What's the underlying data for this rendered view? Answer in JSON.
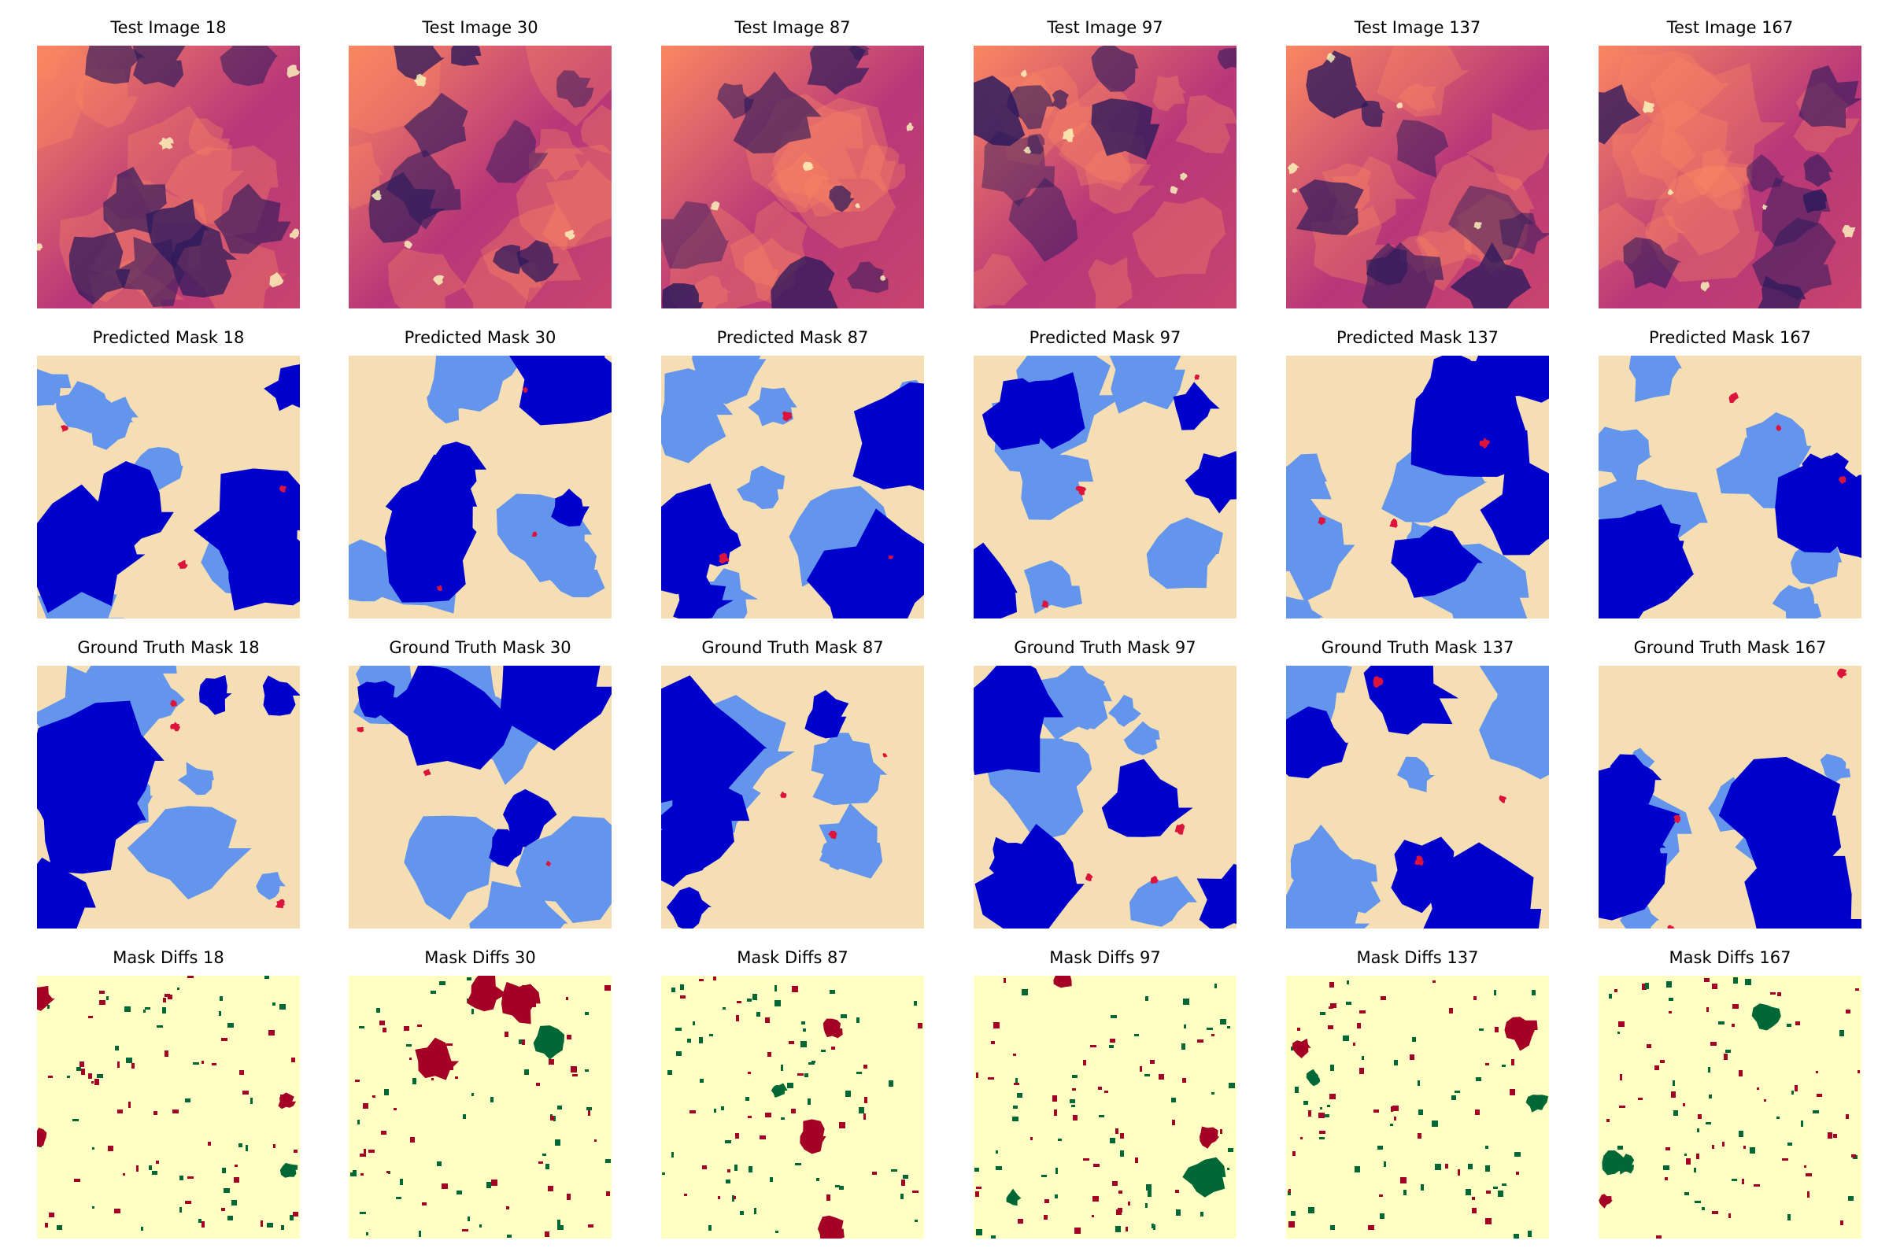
{
  "image_ids": [
    "18",
    "30",
    "87",
    "97",
    "137",
    "167"
  ],
  "rows": [
    {
      "kind": "image",
      "titles": [
        "Test Image 18",
        "Test Image 30",
        "Test Image 87",
        "Test Image 97",
        "Test Image 137",
        "Test Image 167"
      ]
    },
    {
      "kind": "pred",
      "titles": [
        "Predicted Mask 18",
        "Predicted Mask 30",
        "Predicted Mask 87",
        "Predicted Mask 97",
        "Predicted Mask 137",
        "Predicted Mask 167"
      ]
    },
    {
      "kind": "truth",
      "titles": [
        "Ground Truth Mask 18",
        "Ground Truth Mask 30",
        "Ground Truth Mask 87",
        "Ground Truth Mask 97",
        "Ground Truth Mask 137",
        "Ground Truth Mask 167"
      ]
    },
    {
      "kind": "diff",
      "titles": [
        "Mask Diffs 18",
        "Mask Diffs 30",
        "Mask Diffs 87",
        "Mask Diffs 97",
        "Mask Diffs 137",
        "Mask Diffs 167"
      ]
    }
  ],
  "colors": {
    "mask_background": "#f5deb3",
    "mask_light_blue": "#6495ed",
    "mask_dark_blue": "#0000cd",
    "mask_red": "#dc143c",
    "mask_purple": "#800080",
    "diff_background": "#ffffc4",
    "diff_green": "#006837",
    "diff_red": "#a50026",
    "img_dark": "#2d1a5c",
    "img_mid": "#b73779",
    "img_bright": "#fb8761",
    "img_hot": "#fcfdbf"
  }
}
